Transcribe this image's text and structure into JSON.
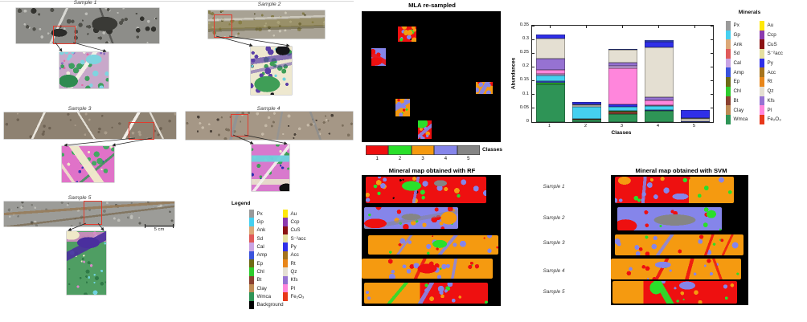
{
  "figure": {
    "samples": [
      {
        "label": "Sample 1"
      },
      {
        "label": "Sample 2"
      },
      {
        "label": "Sample 3"
      },
      {
        "label": "Sample 4"
      },
      {
        "label": "Sample 5"
      }
    ],
    "scale_bar_label": "5 cm",
    "legend_title": "Legend",
    "background_entry": {
      "label": "Background",
      "color": "#000000"
    }
  },
  "minerals": {
    "title": "Minerals",
    "col1": [
      {
        "label": "Px",
        "color": "#9A9A9A"
      },
      {
        "label": "Gp",
        "color": "#45D0F0"
      },
      {
        "label": "Ank",
        "color": "#DCA877"
      },
      {
        "label": "Sd",
        "color": "#E05A5A"
      },
      {
        "label": "Cal",
        "color": "#C9A4E4"
      },
      {
        "label": "Amp",
        "color": "#3A53DC"
      },
      {
        "label": "Ep",
        "color": "#6E6A15"
      },
      {
        "label": "Chl",
        "color": "#2ECC2E"
      },
      {
        "label": "Bt",
        "color": "#8A4030"
      },
      {
        "label": "Clay",
        "color": "#BE8B55"
      },
      {
        "label": "Wmca",
        "color": "#2E9456"
      }
    ],
    "col2": [
      {
        "label": "Au",
        "color": "#FFE80A"
      },
      {
        "label": "Ccp",
        "color": "#8C3AAE"
      },
      {
        "label": "CuS",
        "color": "#8B1212"
      },
      {
        "label": "S⁻²acc",
        "color": "#E5DF9E"
      },
      {
        "label": "Py",
        "color": "#2F2FE8"
      },
      {
        "label": "Acc",
        "color": "#A5731C"
      },
      {
        "label": "Rt",
        "color": "#E8861A"
      },
      {
        "label": "Qz",
        "color": "#E4DFD2"
      },
      {
        "label": "Kfs",
        "color": "#9672D2"
      },
      {
        "label": "Pl",
        "color": "#FF86DC"
      },
      {
        "label": "Fe₂O₃",
        "color": "#E8381A"
      }
    ]
  },
  "mla": {
    "title": "MLA re-sampled",
    "classes_label": "Classes",
    "classes": [
      {
        "id": "1",
        "color": "#EE1010"
      },
      {
        "id": "2",
        "color": "#2ADF2A"
      },
      {
        "id": "3",
        "color": "#F59A10"
      },
      {
        "id": "4",
        "color": "#8585EA"
      },
      {
        "id": "5",
        "color": "#858585"
      }
    ]
  },
  "rf": {
    "title": "Mineral map obtained with RF"
  },
  "svm": {
    "title": "Mineral map obtained with SVM",
    "sample_labels": [
      "Sample 1",
      "Sample 2",
      "Sample 3",
      "Sample 4",
      "Sample 5"
    ]
  },
  "chart_data": {
    "type": "bar",
    "stacked": true,
    "title": "",
    "xlabel": "Classes",
    "ylabel": "Abundances",
    "categories": [
      "1",
      "2",
      "3",
      "4",
      "5"
    ],
    "ylim": [
      0,
      0.35
    ],
    "yticks": [
      "0",
      "0.05",
      "0.1",
      "0.15",
      "0.2",
      "0.25",
      "0.3",
      "0.35"
    ],
    "grid": false,
    "legend_title": "Minerals",
    "legend_position": "right",
    "bars": [
      {
        "category": "1",
        "total": 0.317,
        "segments": [
          {
            "mineral": "Wmca",
            "value": 0.138
          },
          {
            "mineral": "Chl",
            "value": 0.005
          },
          {
            "mineral": "Amp",
            "value": 0.007
          },
          {
            "mineral": "Gp",
            "value": 0.02
          },
          {
            "mineral": "Cal",
            "value": 0.005
          },
          {
            "mineral": "Pl",
            "value": 0.016
          },
          {
            "mineral": "Kfs",
            "value": 0.041
          },
          {
            "mineral": "Qz",
            "value": 0.073
          },
          {
            "mineral": "Py",
            "value": 0.012
          }
        ]
      },
      {
        "category": "2",
        "total": 0.073,
        "segments": [
          {
            "mineral": "Wmca",
            "value": 0.008
          },
          {
            "mineral": "Bt",
            "value": 0.005
          },
          {
            "mineral": "Gp",
            "value": 0.042
          },
          {
            "mineral": "Qz",
            "value": 0.006
          },
          {
            "mineral": "Px",
            "value": 0.003
          },
          {
            "mineral": "Py",
            "value": 0.009
          }
        ]
      },
      {
        "category": "3",
        "total": 0.266,
        "segments": [
          {
            "mineral": "Wmca",
            "value": 0.03
          },
          {
            "mineral": "Bt",
            "value": 0.007
          },
          {
            "mineral": "Chl",
            "value": 0.005
          },
          {
            "mineral": "Gp",
            "value": 0.013
          },
          {
            "mineral": "Py",
            "value": 0.01
          },
          {
            "mineral": "Pl",
            "value": 0.13
          },
          {
            "mineral": "Cal",
            "value": 0.01
          },
          {
            "mineral": "Kfs",
            "value": 0.012
          },
          {
            "mineral": "Qz",
            "value": 0.045
          },
          {
            "mineral": "Amp",
            "value": 0.004
          }
        ]
      },
      {
        "category": "4",
        "total": 0.297,
        "segments": [
          {
            "mineral": "Wmca",
            "value": 0.04
          },
          {
            "mineral": "Amp",
            "value": 0.003
          },
          {
            "mineral": "Gp",
            "value": 0.015
          },
          {
            "mineral": "Cal",
            "value": 0.004
          },
          {
            "mineral": "Pl",
            "value": 0.016
          },
          {
            "mineral": "Kfs",
            "value": 0.014
          },
          {
            "mineral": "Qz",
            "value": 0.178
          },
          {
            "mineral": "Py",
            "value": 0.022
          },
          {
            "mineral": "Amp",
            "value": 0.005
          }
        ]
      },
      {
        "category": "5",
        "total": 0.045,
        "segments": [
          {
            "mineral": "Amp",
            "value": 0.003
          },
          {
            "mineral": "Qz",
            "value": 0.008
          },
          {
            "mineral": "Px",
            "value": 0.004
          },
          {
            "mineral": "Py",
            "value": 0.03
          }
        ]
      }
    ]
  }
}
